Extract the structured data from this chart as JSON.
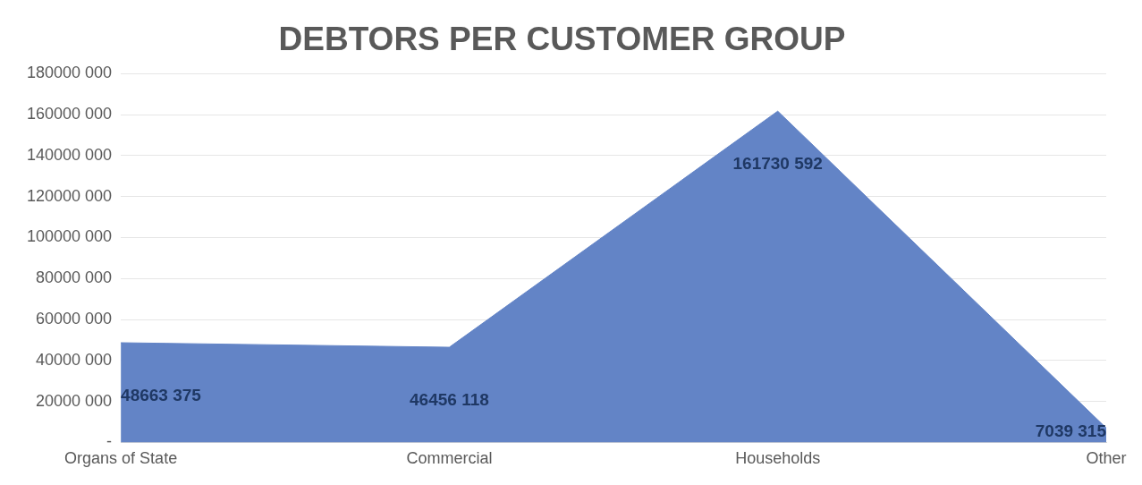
{
  "chart_data": {
    "type": "area",
    "title": "DEBTORS PER CUSTOMER GROUP",
    "categories": [
      "Organs of State",
      "Commercial",
      "Households",
      "Other"
    ],
    "series": [
      {
        "color": "#6384c6",
        "values": [
          48663375,
          46456118,
          161730592,
          7039315
        ],
        "value_labels": [
          "48663 375",
          "46456 118",
          "161730 592",
          "7039 315"
        ]
      }
    ],
    "ylim": [
      0,
      180000000
    ],
    "yticks": [
      {
        "value": 0,
        "label": "-"
      },
      {
        "value": 20000000,
        "label": "20000 000"
      },
      {
        "value": 40000000,
        "label": "40000 000"
      },
      {
        "value": 60000000,
        "label": "60000 000"
      },
      {
        "value": 80000000,
        "label": "80000 000"
      },
      {
        "value": 100000000,
        "label": "100000 000"
      },
      {
        "value": 120000000,
        "label": "120000 000"
      },
      {
        "value": 140000000,
        "label": "140000 000"
      },
      {
        "value": 160000000,
        "label": "160000 000"
      },
      {
        "value": 180000000,
        "label": "180000 000"
      }
    ],
    "grid": "y"
  }
}
